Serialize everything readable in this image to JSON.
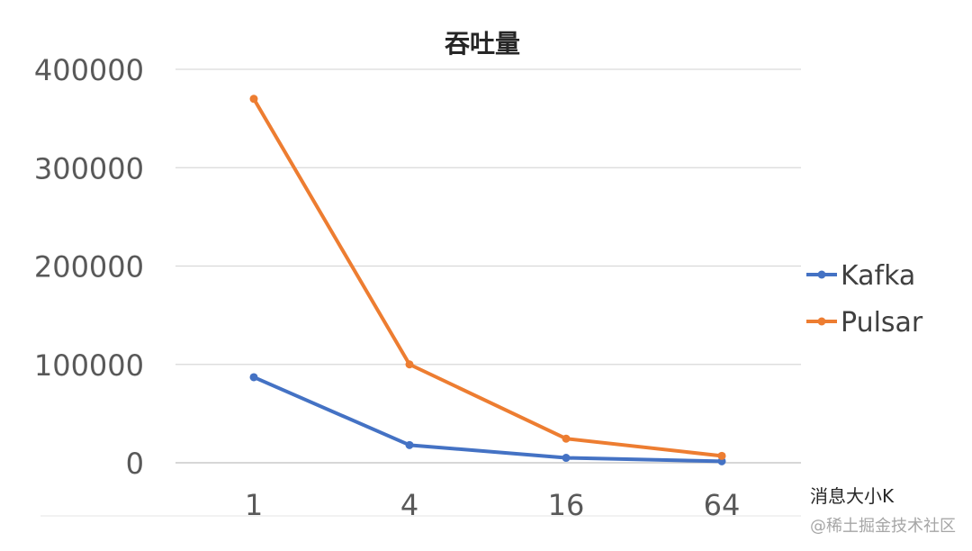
{
  "chart_data": {
    "type": "line",
    "title": "吞吐量",
    "xlabel": "消息大小K",
    "ylabel": "",
    "categories": [
      "1",
      "4",
      "16",
      "64"
    ],
    "ylim": [
      0,
      400000
    ],
    "yticks": [
      0,
      100000,
      200000,
      300000,
      400000
    ],
    "grid": true,
    "legend_position": "right",
    "series": [
      {
        "name": "Kafka",
        "color": "#4472C4",
        "values": [
          87000,
          18000,
          5000,
          1500
        ]
      },
      {
        "name": "Pulsar",
        "color": "#ED7D31",
        "values": [
          370000,
          100000,
          24500,
          7000
        ]
      }
    ]
  },
  "watermark": "@稀土掘金技术社区"
}
